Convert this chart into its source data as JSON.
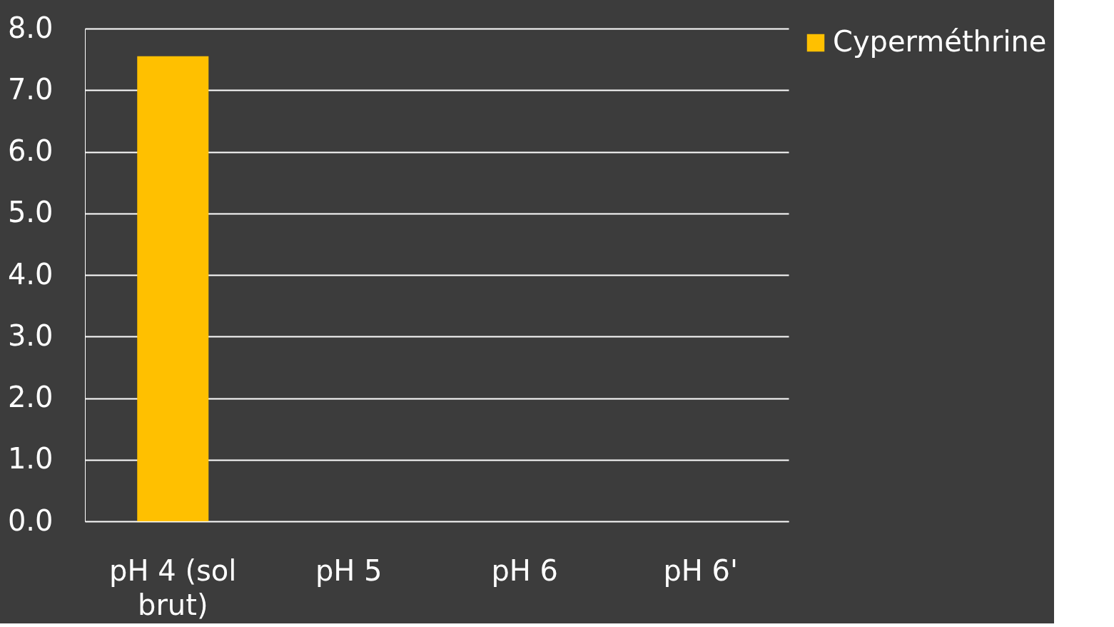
{
  "chart_data": {
    "type": "bar",
    "categories": [
      "pH 4 (sol brut)",
      "pH 5",
      "pH 6",
      "pH 6'"
    ],
    "series": [
      {
        "name": "Cyperméthrine",
        "color": "#ffc000",
        "values": [
          7.55,
          0,
          0,
          0
        ]
      }
    ],
    "ylim": [
      0,
      8
    ],
    "yticks": [
      {
        "value": 0,
        "label": "0.0"
      },
      {
        "value": 1,
        "label": "1.0"
      },
      {
        "value": 2,
        "label": "2.0"
      },
      {
        "value": 3,
        "label": "3.0"
      },
      {
        "value": 4,
        "label": "4.0"
      },
      {
        "value": 5,
        "label": "5.0"
      },
      {
        "value": 6,
        "label": "6.0"
      },
      {
        "value": 7,
        "label": "7.0"
      },
      {
        "value": 8,
        "label": "8.0"
      }
    ],
    "grid": "y",
    "legend": "right"
  }
}
